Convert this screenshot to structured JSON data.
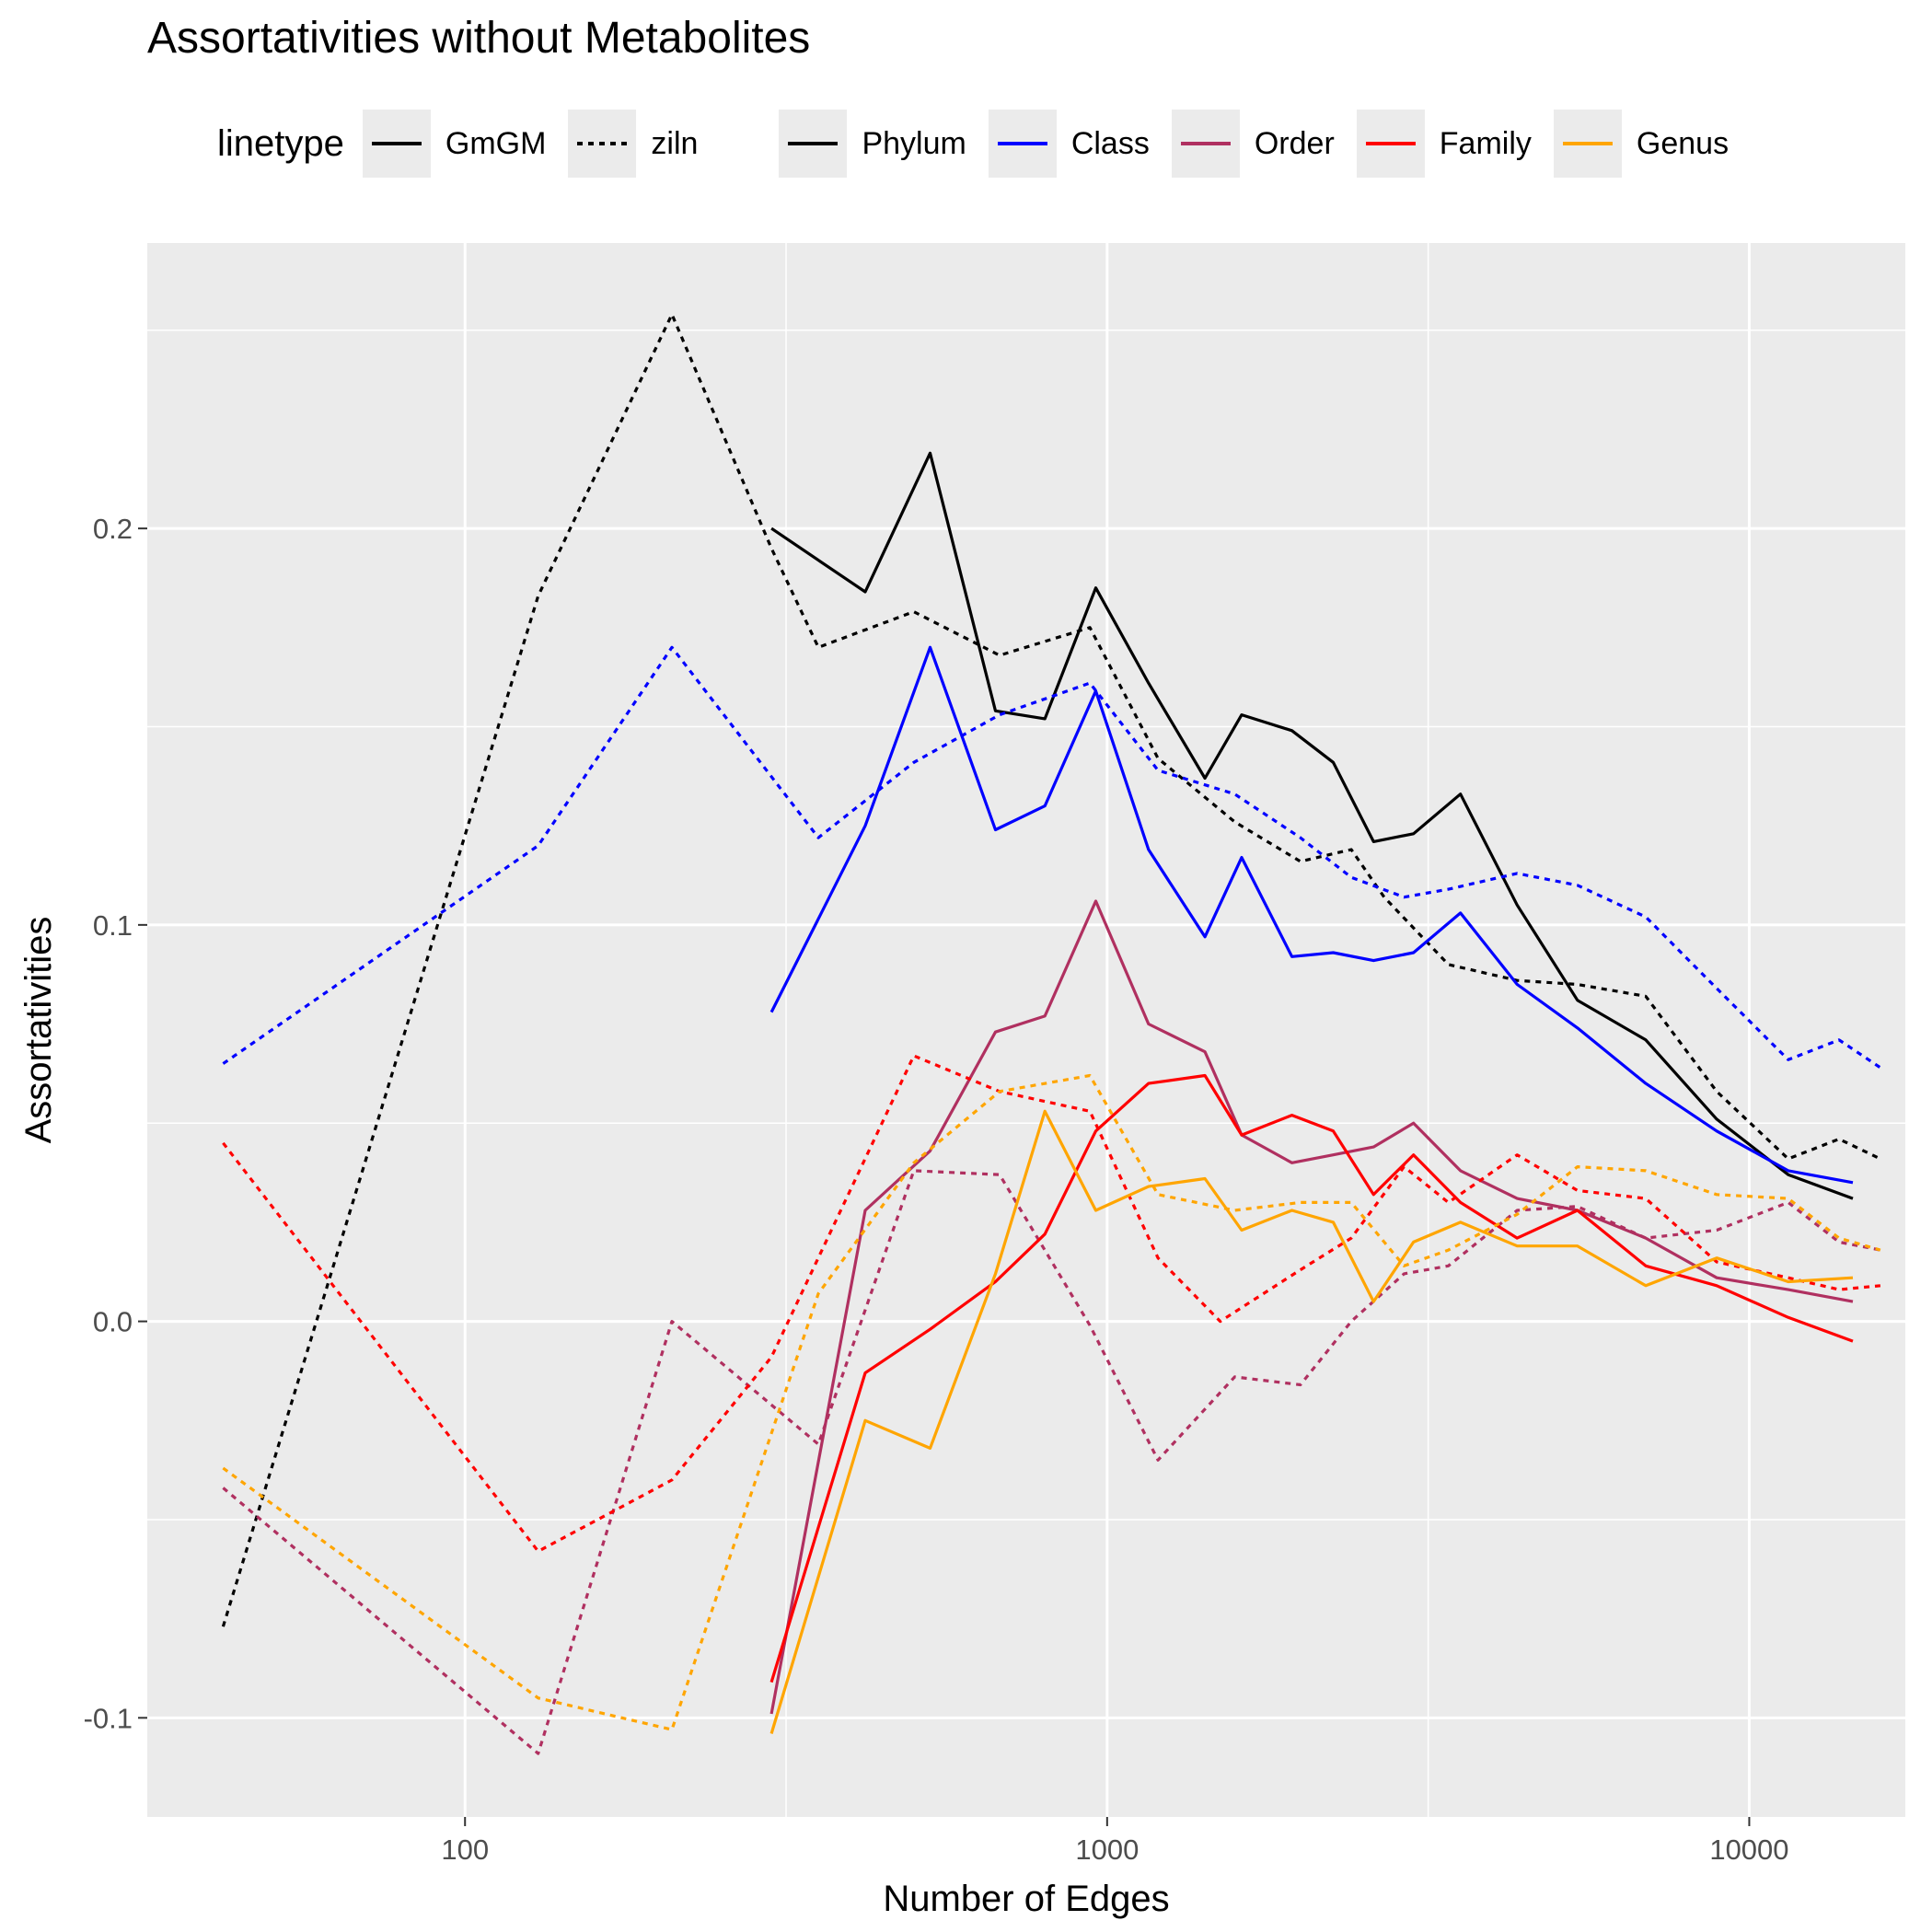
{
  "title": "Assortativities without Metabolites",
  "legend": {
    "linetype_title": "linetype",
    "linetypes": [
      {
        "label": "GmGM",
        "dash": "solid"
      },
      {
        "label": "ziln",
        "dash": "dotted"
      }
    ],
    "colors": [
      {
        "label": "Phylum",
        "color": "#000000"
      },
      {
        "label": "Class",
        "color": "#0000ff"
      },
      {
        "label": "Order",
        "color": "#b03060"
      },
      {
        "label": "Family",
        "color": "#ff0000"
      },
      {
        "label": "Genus",
        "color": "#ffa500"
      }
    ]
  },
  "chart_data": {
    "type": "line",
    "title": "Assortativities without Metabolites",
    "xlabel": "Number of Edges",
    "ylabel": "Assortativities",
    "x_scale": "log10",
    "xlim": [
      32,
      17500
    ],
    "ylim": [
      -0.125,
      0.272
    ],
    "x_ticks": [
      100,
      1000,
      10000
    ],
    "x_tick_labels": [
      "100",
      "1000",
      "10000"
    ],
    "y_ticks": [
      -0.1,
      0.0,
      0.1,
      0.2
    ],
    "y_tick_labels": [
      "-0.1",
      "0.0",
      "0.1",
      "0.2"
    ],
    "grid": true,
    "legend_position": "top",
    "series": [
      {
        "name": "Phylum",
        "linetype": "GmGM",
        "color": "#000000",
        "x": [
          300,
          420,
          530,
          670,
          800,
          960,
          1160,
          1420,
          1620,
          1940,
          2250,
          2600,
          3000,
          3550,
          4350,
          5400,
          6900,
          8900,
          11500,
          14500
        ],
        "y": [
          0.2,
          0.184,
          0.219,
          0.154,
          0.152,
          0.185,
          0.161,
          0.137,
          0.153,
          0.149,
          0.141,
          0.121,
          0.123,
          0.133,
          0.105,
          0.081,
          0.071,
          0.051,
          0.037,
          0.031
        ]
      },
      {
        "name": "Phylum",
        "linetype": "ziln",
        "color": "#000000",
        "x": [
          42,
          130,
          210,
          300,
          355,
          500,
          680,
          940,
          1200,
          1580,
          2000,
          2400,
          2700,
          3400,
          4350,
          5400,
          6900,
          8900,
          11500,
          13800,
          16000
        ],
        "y": [
          -0.077,
          0.183,
          0.254,
          0.195,
          0.17,
          0.179,
          0.168,
          0.175,
          0.142,
          0.126,
          0.116,
          0.119,
          0.107,
          0.09,
          0.086,
          0.085,
          0.082,
          0.058,
          0.041,
          0.046,
          0.041
        ]
      },
      {
        "name": "Class",
        "linetype": "GmGM",
        "color": "#0000ff",
        "x": [
          300,
          420,
          530,
          670,
          800,
          960,
          1160,
          1420,
          1620,
          1940,
          2250,
          2600,
          3000,
          3550,
          4350,
          5400,
          6900,
          8900,
          11500,
          14500
        ],
        "y": [
          0.078,
          0.125,
          0.17,
          0.124,
          0.13,
          0.159,
          0.119,
          0.097,
          0.117,
          0.092,
          0.093,
          0.091,
          0.093,
          0.103,
          0.085,
          0.074,
          0.06,
          0.048,
          0.038,
          0.035
        ]
      },
      {
        "name": "Class",
        "linetype": "ziln",
        "color": "#0000ff",
        "x": [
          42,
          130,
          210,
          355,
          500,
          680,
          940,
          1200,
          1580,
          2000,
          2400,
          2900,
          3400,
          4350,
          5400,
          6900,
          8900,
          11500,
          13800,
          16000
        ],
        "y": [
          0.065,
          0.12,
          0.17,
          0.122,
          0.141,
          0.153,
          0.161,
          0.139,
          0.133,
          0.122,
          0.112,
          0.107,
          0.109,
          0.113,
          0.11,
          0.102,
          0.084,
          0.066,
          0.071,
          0.064
        ]
      },
      {
        "name": "Order",
        "linetype": "GmGM",
        "color": "#b03060",
        "x": [
          300,
          420,
          530,
          670,
          800,
          960,
          1160,
          1420,
          1620,
          1940,
          2250,
          2600,
          3000,
          3550,
          4350,
          5400,
          6900,
          8900,
          11500,
          14500
        ],
        "y": [
          -0.099,
          0.028,
          0.043,
          0.073,
          0.077,
          0.106,
          0.075,
          0.068,
          0.047,
          0.04,
          0.042,
          0.044,
          0.05,
          0.038,
          0.031,
          0.028,
          0.021,
          0.011,
          0.008,
          0.005
        ]
      },
      {
        "name": "Order",
        "linetype": "ziln",
        "color": "#b03060",
        "x": [
          42,
          130,
          210,
          355,
          500,
          680,
          940,
          1200,
          1580,
          2000,
          2400,
          2900,
          3400,
          4350,
          5400,
          6900,
          8900,
          11500,
          13800,
          16000
        ],
        "y": [
          -0.042,
          -0.109,
          0.0,
          -0.031,
          0.038,
          0.037,
          -0.001,
          -0.035,
          -0.014,
          -0.016,
          0.0,
          0.012,
          0.014,
          0.028,
          0.029,
          0.021,
          0.023,
          0.03,
          0.02,
          0.018
        ]
      },
      {
        "name": "Family",
        "linetype": "GmGM",
        "color": "#ff0000",
        "x": [
          300,
          420,
          530,
          670,
          800,
          960,
          1160,
          1420,
          1620,
          1940,
          2250,
          2600,
          3000,
          3550,
          4350,
          5400,
          6900,
          8900,
          11500,
          14500
        ],
        "y": [
          -0.091,
          -0.013,
          -0.002,
          0.01,
          0.022,
          0.048,
          0.06,
          0.062,
          0.047,
          0.052,
          0.048,
          0.032,
          0.042,
          0.03,
          0.021,
          0.028,
          0.014,
          0.009,
          0.001,
          -0.005
        ]
      },
      {
        "name": "Family",
        "linetype": "ziln",
        "color": "#ff0000",
        "x": [
          42,
          130,
          210,
          300,
          500,
          680,
          940,
          1200,
          1500,
          2000,
          2400,
          2900,
          3400,
          4350,
          5400,
          6900,
          8900,
          11500,
          13800,
          16000
        ],
        "y": [
          0.045,
          -0.058,
          -0.04,
          -0.009,
          0.067,
          0.058,
          0.053,
          0.016,
          0.0,
          0.013,
          0.021,
          0.039,
          0.03,
          0.042,
          0.033,
          0.031,
          0.015,
          0.011,
          0.008,
          0.009
        ]
      },
      {
        "name": "Genus",
        "linetype": "GmGM",
        "color": "#ffa500",
        "x": [
          300,
          420,
          530,
          670,
          800,
          960,
          1160,
          1420,
          1620,
          1940,
          2250,
          2600,
          3000,
          3550,
          4350,
          5400,
          6900,
          8900,
          11500,
          14500
        ],
        "y": [
          -0.104,
          -0.025,
          -0.032,
          0.012,
          0.053,
          0.028,
          0.034,
          0.036,
          0.023,
          0.028,
          0.025,
          0.005,
          0.02,
          0.025,
          0.019,
          0.019,
          0.009,
          0.016,
          0.01,
          0.011
        ]
      },
      {
        "name": "Genus",
        "linetype": "ziln",
        "color": "#ffa500",
        "x": [
          42,
          130,
          210,
          355,
          500,
          680,
          940,
          1200,
          1580,
          2000,
          2400,
          2900,
          3400,
          4350,
          5400,
          6900,
          8900,
          11500,
          13800,
          16000
        ],
        "y": [
          -0.037,
          -0.095,
          -0.103,
          0.007,
          0.04,
          0.058,
          0.062,
          0.032,
          0.028,
          0.03,
          0.03,
          0.014,
          0.018,
          0.027,
          0.039,
          0.038,
          0.032,
          0.031,
          0.021,
          0.018
        ]
      }
    ]
  }
}
